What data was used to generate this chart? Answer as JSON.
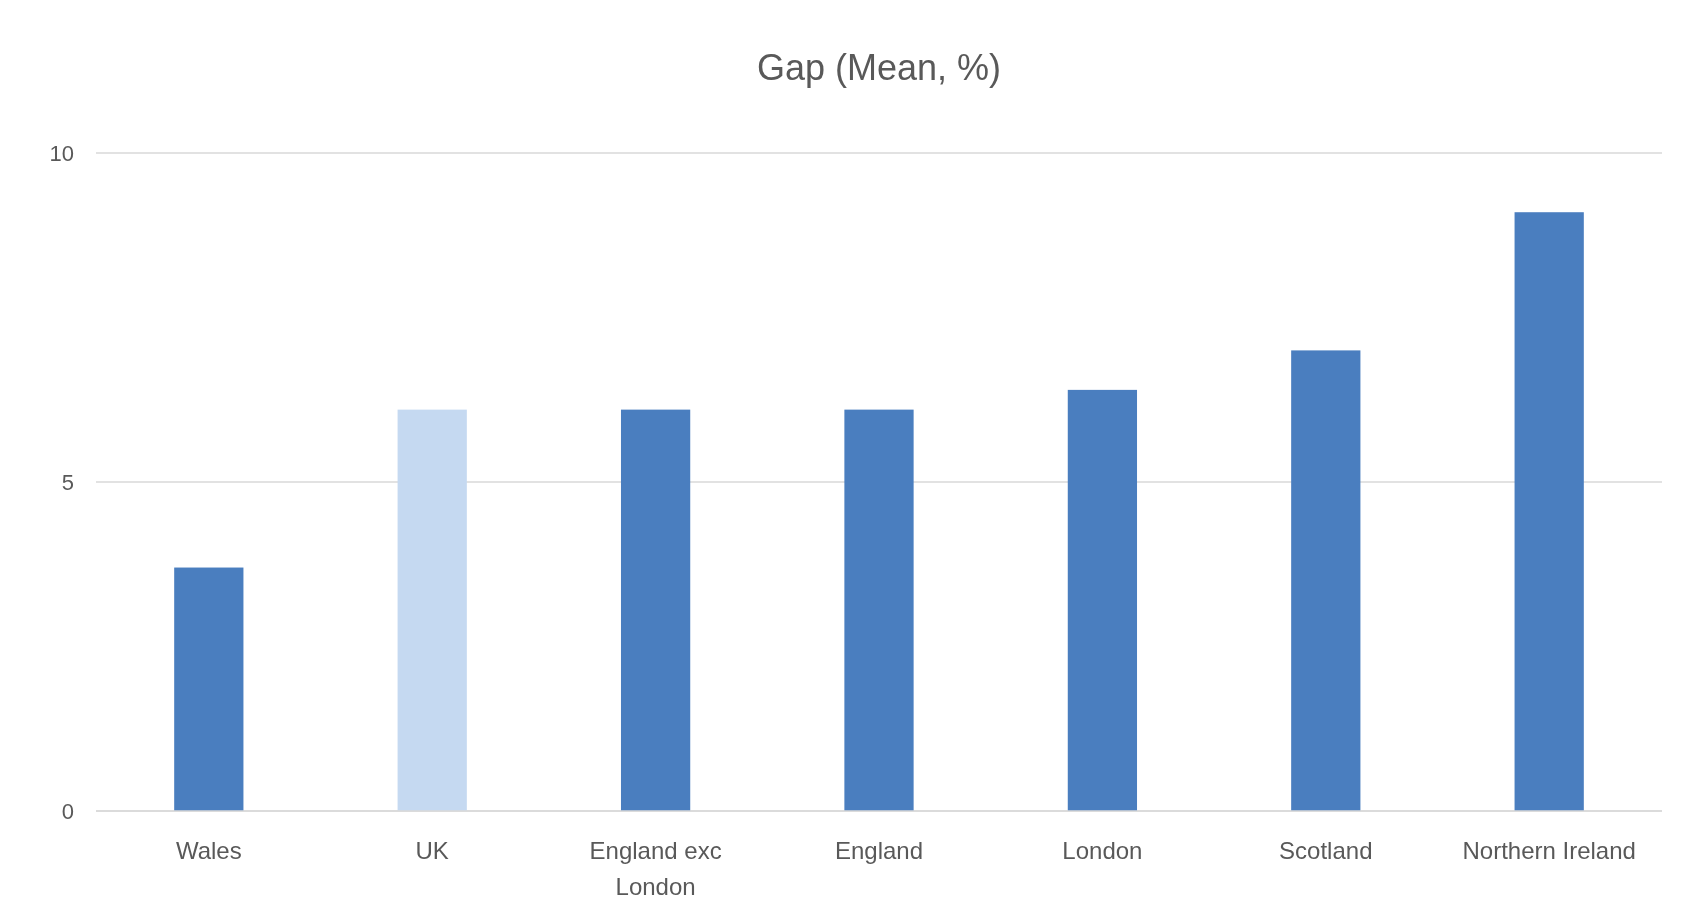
{
  "chart_data": {
    "type": "bar",
    "title": "Gap (Mean, %)",
    "categories": [
      "Wales",
      "UK",
      "England exc London",
      "England",
      "London",
      "Scotland",
      "Northern Ireland"
    ],
    "values": [
      3.7,
      6.1,
      6.1,
      6.1,
      6.4,
      7.0,
      9.1
    ],
    "colors": [
      "#4a7ebf",
      "#c5d9f1",
      "#4a7ebf",
      "#4a7ebf",
      "#4a7ebf",
      "#4a7ebf",
      "#4a7ebf"
    ],
    "ylim": [
      0,
      10
    ],
    "yticks": [
      0,
      5,
      10
    ],
    "grid": "y"
  }
}
